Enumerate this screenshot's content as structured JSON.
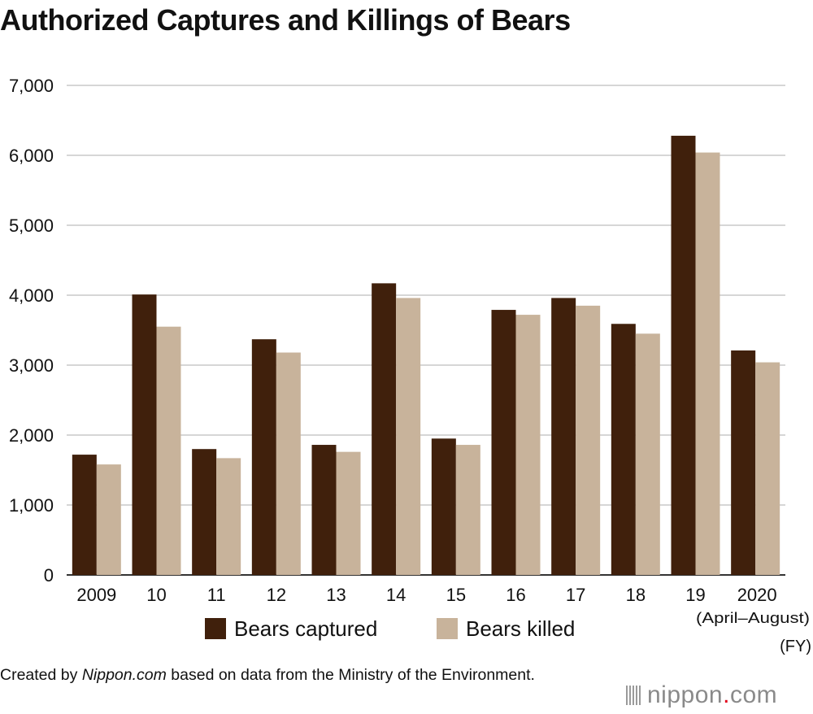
{
  "chart_data": {
    "type": "bar",
    "title": "Authorized Captures and Killings of Bears",
    "categories": [
      "2009",
      "10",
      "11",
      "12",
      "13",
      "14",
      "15",
      "16",
      "17",
      "18",
      "19",
      "2020"
    ],
    "category_note": "(April–August)",
    "x_unit": "(FY)",
    "series": [
      {
        "name": "Bears captured",
        "color": "#40200c",
        "values": [
          1720,
          4010,
          1800,
          3370,
          1860,
          4170,
          1950,
          3790,
          3960,
          3590,
          6280,
          3210
        ]
      },
      {
        "name": "Bears killed",
        "color": "#c8b39b",
        "values": [
          1580,
          3550,
          1670,
          3180,
          1760,
          3960,
          1860,
          3720,
          3850,
          3450,
          6040,
          3040
        ]
      }
    ],
    "yticks": [
      "0",
      "1,000",
      "2,000",
      "3,000",
      "4,000",
      "5,000",
      "6,000",
      "7,000"
    ],
    "ylim": [
      0,
      7000
    ],
    "grid": true,
    "legend_position": "bottom"
  },
  "credit": {
    "prefix": "Created by ",
    "site": "Nippon.com",
    "suffix": " based on data from the Ministry of the Environment."
  },
  "logo": {
    "name": "nippon",
    "dot": ".",
    "tld": "com"
  }
}
